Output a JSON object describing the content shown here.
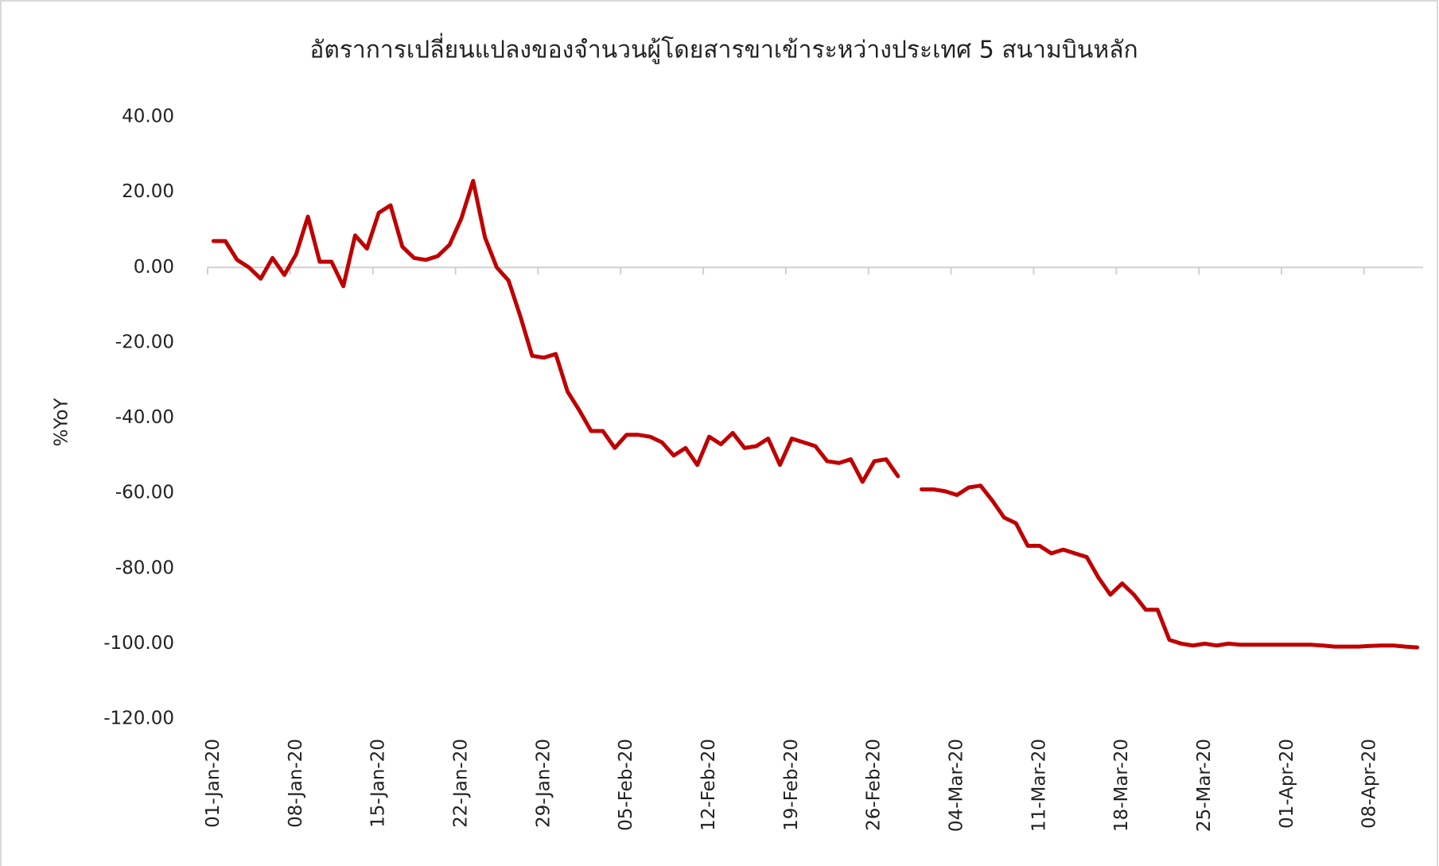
{
  "chart_data": {
    "type": "line",
    "title": "อัตราการเปลี่ยนแปลงของจำนวนผู้โดยสารขาเข้าระหว่างประเทศ 5 สนามบินหลัก",
    "y_label": "%YoY",
    "color": "#c00000",
    "categories": [
      "01-Jan-20",
      null,
      null,
      null,
      null,
      null,
      null,
      "08-Jan-20",
      null,
      null,
      null,
      null,
      null,
      null,
      "15-Jan-20",
      null,
      null,
      null,
      null,
      null,
      null,
      "22-Jan-20",
      null,
      null,
      null,
      null,
      null,
      null,
      "29-Jan-20",
      null,
      null,
      null,
      null,
      null,
      null,
      "05-Feb-20",
      null,
      null,
      null,
      null,
      null,
      null,
      "12-Feb-20",
      null,
      null,
      null,
      null,
      null,
      null,
      "19-Feb-20",
      null,
      null,
      null,
      null,
      null,
      null,
      "26-Feb-20",
      null,
      null,
      null,
      null,
      null,
      null,
      "04-Mar-20",
      null,
      null,
      null,
      null,
      null,
      null,
      "11-Mar-20",
      null,
      null,
      null,
      null,
      null,
      null,
      "18-Mar-20",
      null,
      null,
      null,
      null,
      null,
      null,
      "25-Mar-20",
      null,
      null,
      null,
      null,
      null,
      null,
      "01-Apr-20",
      null,
      null,
      null,
      null,
      null,
      null,
      "08-Apr-20",
      null,
      null,
      null,
      null
    ],
    "values": [
      7,
      7,
      2,
      0,
      -3,
      2.5,
      -2,
      3.5,
      13.5,
      1.5,
      1.5,
      -5,
      8.5,
      5,
      14.5,
      16.5,
      5.5,
      2.5,
      2,
      3,
      6,
      13,
      23,
      8,
      0,
      -3.5,
      -13,
      -23.5,
      -24,
      -23,
      -33,
      -38,
      -43.5,
      -43.5,
      -48,
      -44.5,
      -44.5,
      -45,
      -46.5,
      -50,
      -48,
      -52.5,
      -45,
      -47,
      -44,
      -48,
      -47.5,
      -45.5,
      -52.5,
      -45.5,
      -46.5,
      -47.5,
      -51.5,
      -52,
      -51,
      -57,
      -51.5,
      -51,
      -55.5,
      null,
      -59,
      -59,
      -59.5,
      -60.5,
      -58.5,
      -58,
      -62,
      -66.5,
      -68,
      -74,
      -74,
      -76,
      -75,
      -76,
      -77,
      -82.5,
      -87,
      -84,
      -87,
      -91,
      -91,
      -99,
      -100,
      -100.5,
      -100,
      -100.5,
      -100,
      -100.3,
      -100.3,
      -100.3,
      -100.3,
      -100.3,
      -100.3,
      -100.3,
      -100.5,
      -100.8,
      -100.8,
      -100.8,
      -100.6,
      -100.5,
      -100.5,
      -100.8,
      -101
    ],
    "ylim": [
      -120,
      40
    ],
    "yticks": [
      {
        "value": 40,
        "label": "40.00"
      },
      {
        "value": 20,
        "label": "20.00"
      },
      {
        "value": 0,
        "label": "0.00"
      },
      {
        "value": -20,
        "label": "-20.00"
      },
      {
        "value": -40,
        "label": "-40.00"
      },
      {
        "value": -60,
        "label": "-60.00"
      },
      {
        "value": -80,
        "label": "-80.00"
      },
      {
        "value": -100,
        "label": "-100.00"
      },
      {
        "value": -120,
        "label": "-120.00"
      }
    ],
    "grid": false
  }
}
